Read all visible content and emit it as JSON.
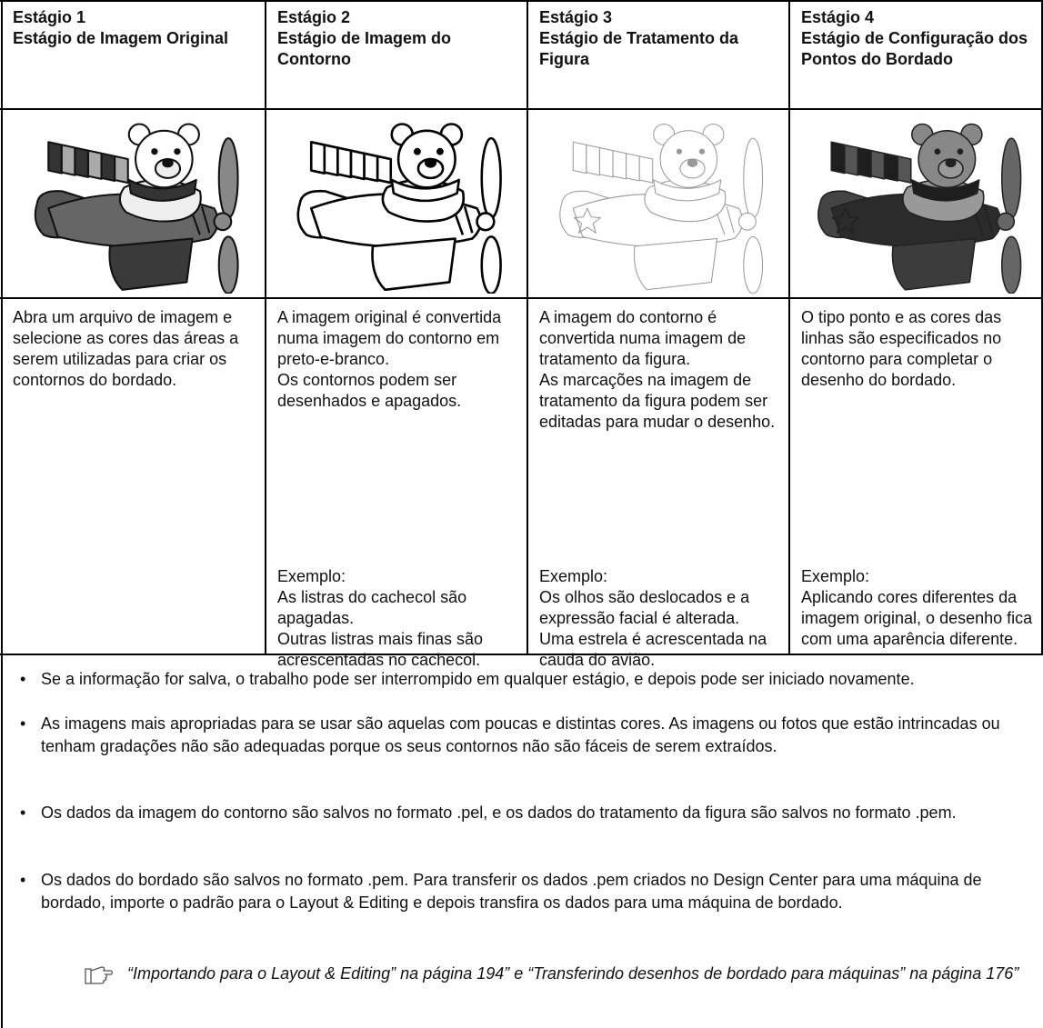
{
  "table": {
    "columns": [
      {
        "stage": "Estágio 1",
        "title": "Estágio de Imagem Original",
        "description": [
          "Abra um arquivo de imagem e selecione as cores das áreas a serem utilizadas para criar os contornos do bordado."
        ]
      },
      {
        "stage": "Estágio 2",
        "title": "Estágio de Imagem do Contorno",
        "description": [
          "A imagem original é convertida numa imagem do contorno em preto-e-branco.",
          "Os contornos podem ser desenhados e apagados."
        ],
        "example_label": "Exemplo:",
        "example": [
          "As listras do cachecol são apagadas.",
          "Outras listras mais finas são acrescentadas no cachecol."
        ]
      },
      {
        "stage": "Estágio 3",
        "title": "Estágio de Tratamento da Figura",
        "description": [
          "A imagem do contorno é convertida numa imagem de tratamento da figura.",
          "As marcações na imagem de tratamento da figura podem ser editadas para mudar o desenho."
        ],
        "example_label": "Exemplo:",
        "example": [
          "Os olhos são deslocados e a expressão facial é alterada.",
          "Uma estrela é acrescentada na cauda do avião."
        ]
      },
      {
        "stage": "Estágio 4",
        "title": "Estágio de Configuração dos Pontos do Bordado",
        "description": [
          "O tipo ponto e as cores das linhas são especificados no contorno para completar o desenho do bordado."
        ],
        "example_label": "Exemplo:",
        "example": [
          "Aplicando cores diferentes da imagem original, o desenho fica com uma aparência diferente."
        ]
      }
    ]
  },
  "notes": {
    "bullets": [
      "Se a informação for salva, o trabalho pode ser interrompido em qualquer estágio, e depois pode ser iniciado novamente.",
      "As imagens mais apropriadas para se usar são aquelas com poucas e distintas cores. As imagens ou fotos que estão intrincadas ou tenham gradações não são adequadas porque os seus contornos não são fáceis de serem extraídos.",
      "Os dados da imagem do contorno são salvos no formato .pel, e os dados do tratamento da figura são salvos no formato .pem.",
      "Os dados do bordado são salvos no formato .pem. Para transferir os dados .pem criados no Design Center para uma máquina de bordado, importe o padrão para o Layout & Editing e depois transfira os dados para uma máquina de bordado."
    ],
    "reference": "“Importando para o Layout & Editing” na página 194” e “Transferindo desenhos de bordado para máquinas” na página 176”"
  }
}
